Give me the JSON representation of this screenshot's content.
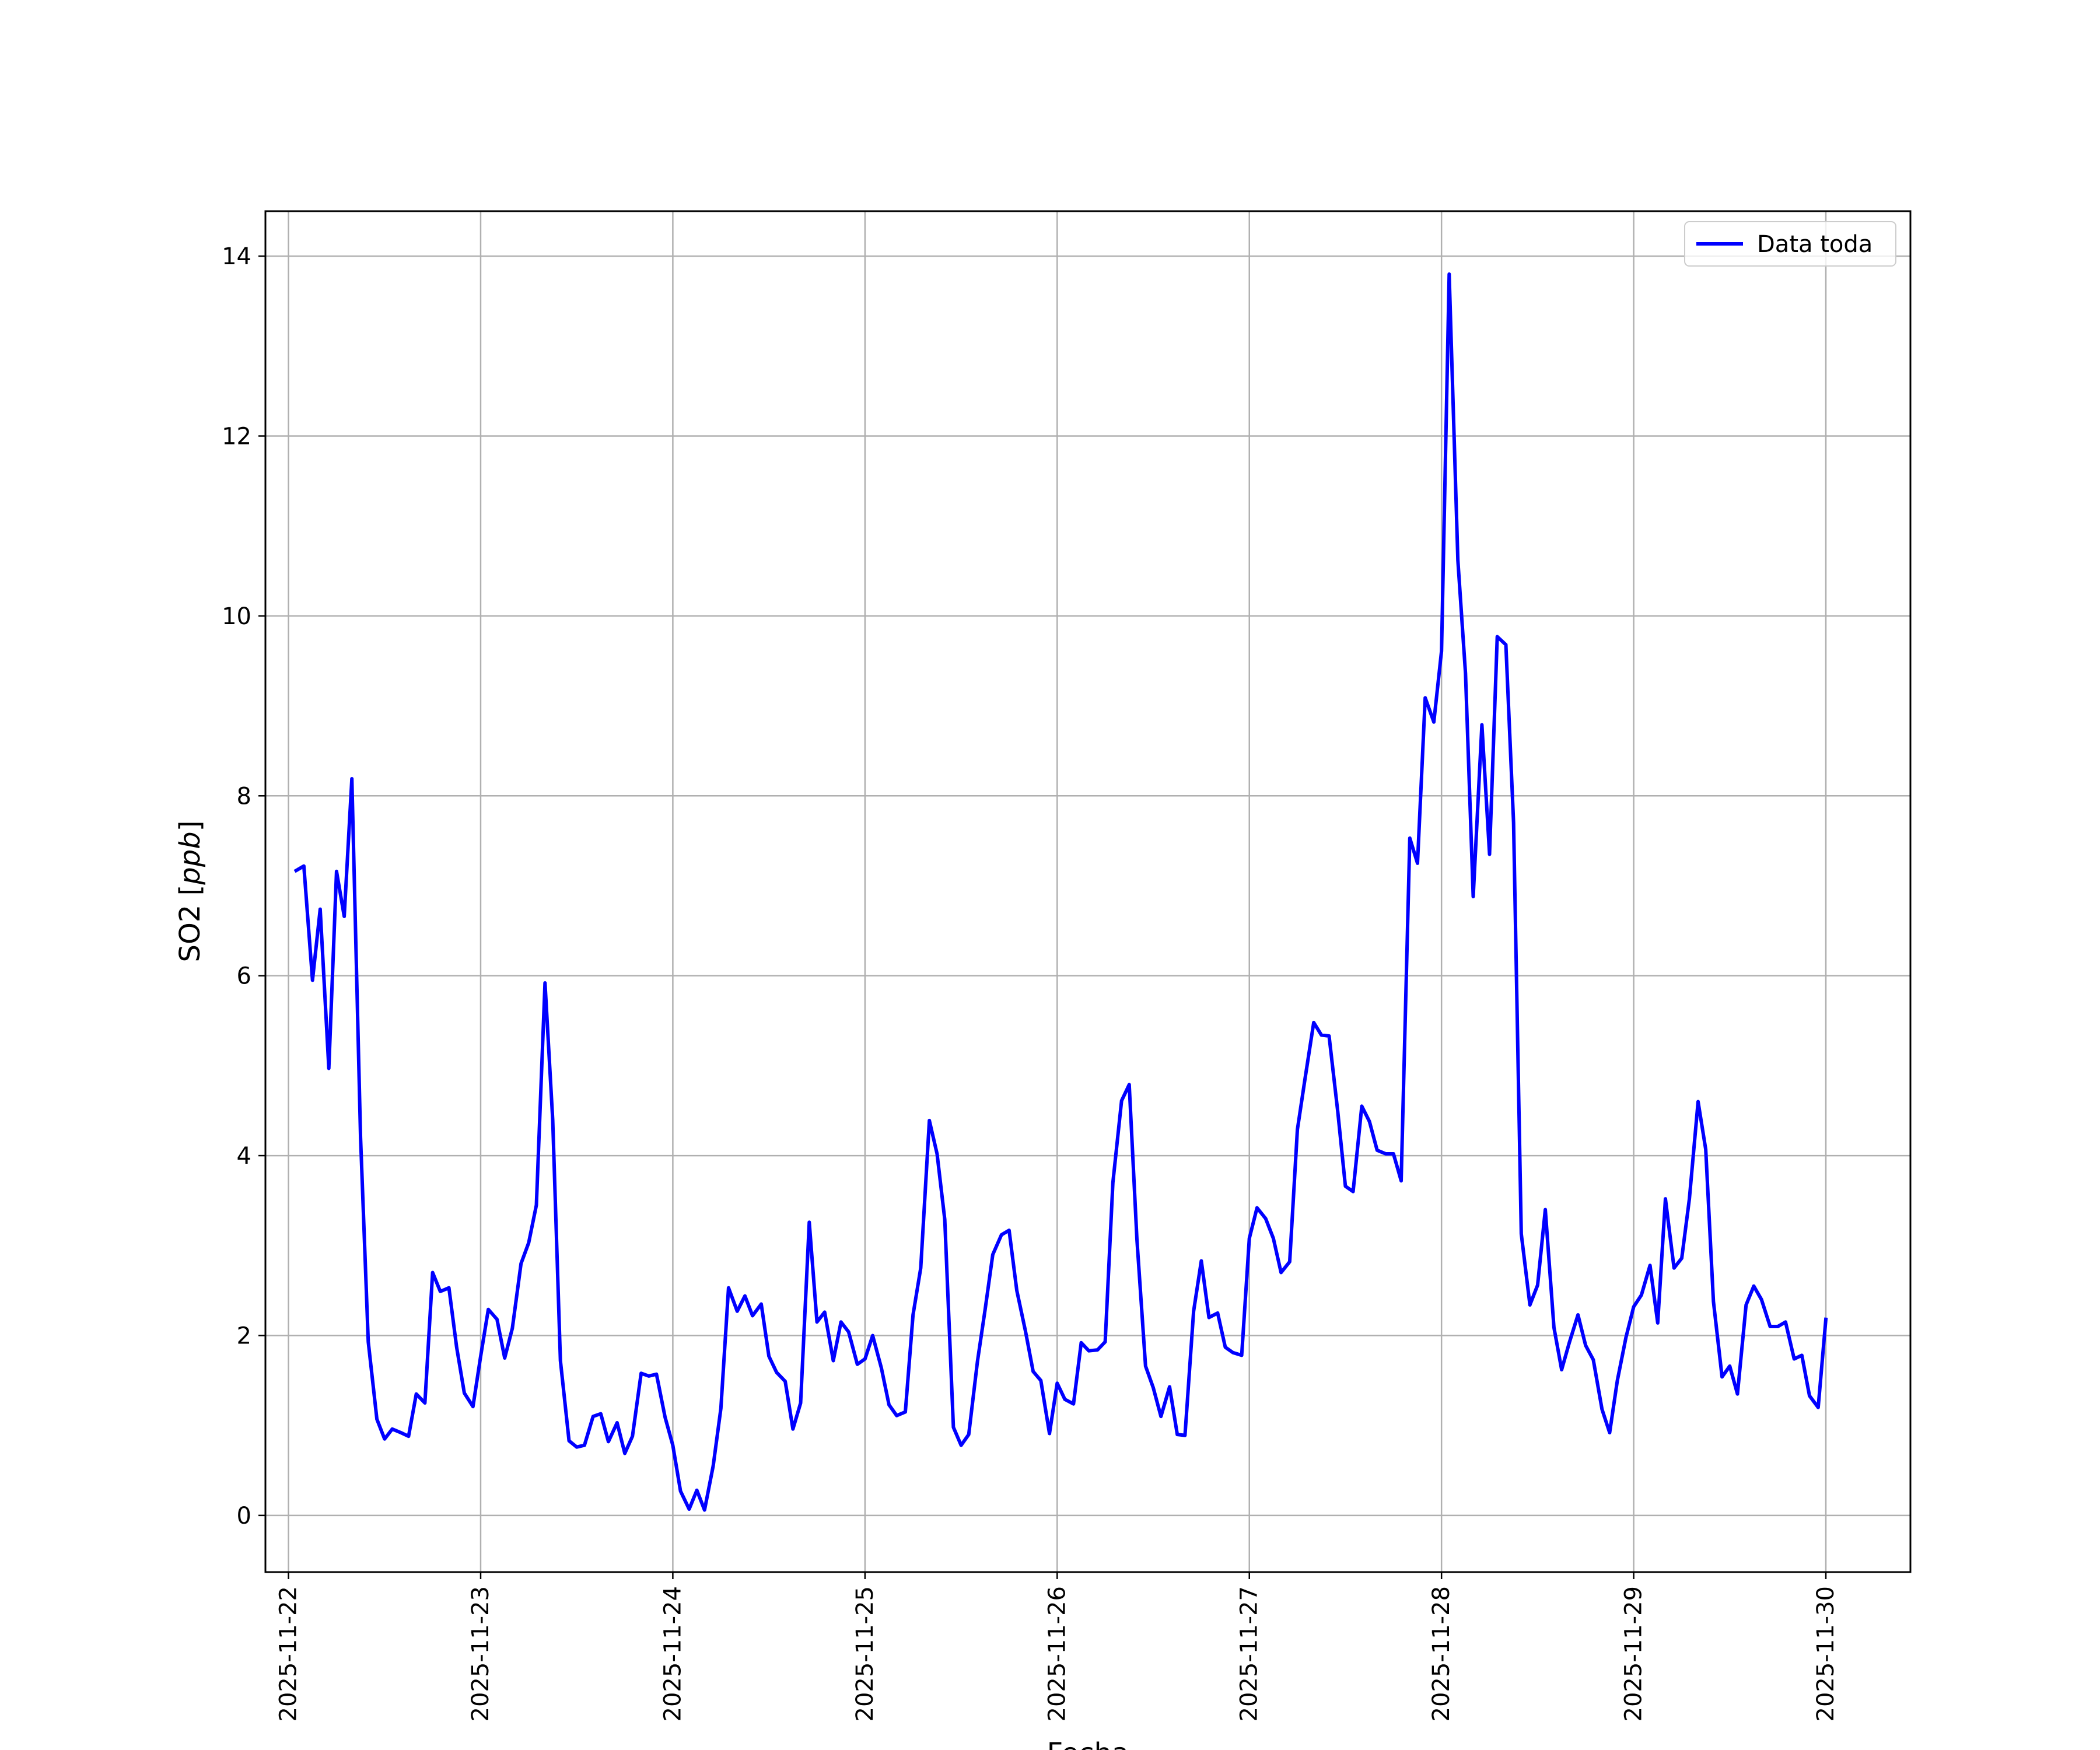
{
  "chart_data": {
    "type": "line",
    "xlabel": "Fecha",
    "ylabel_main": "SO2 [",
    "ylabel_unit": "ppb",
    "ylabel_close": "]",
    "x_tick_labels": [
      "2025-11-22",
      "2025-11-23",
      "2025-11-24",
      "2025-11-25",
      "2025-11-26",
      "2025-11-27",
      "2025-11-28",
      "2025-11-29",
      "2025-11-30"
    ],
    "y_tick_labels": [
      "0",
      "2",
      "4",
      "6",
      "8",
      "10",
      "12",
      "14"
    ],
    "xlim": [
      -0.12,
      8.44
    ],
    "ylim": [
      -0.63,
      14.5
    ],
    "grid": true,
    "legend_position": "top-right",
    "series": [
      {
        "name": "Data toda",
        "color": "#0000ff",
        "x": [
          0.04,
          0.08,
          0.125,
          0.165,
          0.21,
          0.25,
          0.29,
          0.33,
          0.375,
          0.415,
          0.46,
          0.5,
          0.54,
          0.585,
          0.625,
          0.665,
          0.71,
          0.75,
          0.79,
          0.835,
          0.875,
          0.915,
          0.96,
          1.0,
          1.04,
          1.085,
          1.125,
          1.165,
          1.21,
          1.25,
          1.29,
          1.335,
          1.375,
          1.415,
          1.46,
          1.5,
          1.54,
          1.585,
          1.625,
          1.665,
          1.71,
          1.75,
          1.79,
          1.835,
          1.875,
          1.915,
          1.96,
          2.0,
          2.04,
          2.085,
          2.125,
          2.165,
          2.21,
          2.25,
          2.29,
          2.335,
          2.375,
          2.415,
          2.46,
          2.5,
          2.54,
          2.585,
          2.625,
          2.665,
          2.71,
          2.75,
          2.79,
          2.835,
          2.875,
          2.915,
          2.96,
          3.0,
          3.04,
          3.085,
          3.125,
          3.165,
          3.21,
          3.25,
          3.29,
          3.335,
          3.375,
          3.415,
          3.46,
          3.5,
          3.54,
          3.585,
          3.625,
          3.665,
          3.71,
          3.75,
          3.79,
          3.835,
          3.875,
          3.915,
          3.96,
          4.0,
          4.04,
          4.085,
          4.125,
          4.165,
          4.21,
          4.25,
          4.29,
          4.335,
          4.375,
          4.415,
          4.46,
          4.5,
          4.54,
          4.585,
          4.625,
          4.665,
          4.71,
          4.75,
          4.79,
          4.835,
          4.875,
          4.915,
          4.96,
          5.0,
          5.04,
          5.085,
          5.125,
          5.165,
          5.21,
          5.25,
          5.29,
          5.335,
          5.375,
          5.415,
          5.46,
          5.5,
          5.54,
          5.585,
          5.625,
          5.665,
          5.71,
          5.75,
          5.79,
          5.835,
          5.875,
          5.915,
          5.96,
          6.0,
          6.04,
          6.085,
          6.125,
          6.165,
          6.21,
          6.25,
          6.29,
          6.335,
          6.375,
          6.415,
          6.46,
          6.5,
          6.54,
          6.585,
          6.625,
          6.665,
          6.71,
          6.75,
          6.79,
          6.835,
          6.875,
          6.915,
          6.96,
          7.0,
          7.04,
          7.085,
          7.125,
          7.165,
          7.21,
          7.25,
          7.29,
          7.335,
          7.375,
          7.415,
          7.46,
          7.5,
          7.54,
          7.585,
          7.625,
          7.665,
          7.71,
          7.75,
          7.79,
          7.835,
          7.875,
          7.915,
          7.96,
          8.0
        ],
        "y": [
          7.17,
          7.22,
          5.95,
          6.74,
          4.97,
          7.16,
          6.66,
          8.19,
          4.2,
          1.93,
          1.07,
          0.85,
          0.96,
          0.92,
          0.88,
          1.35,
          1.25,
          2.7,
          2.49,
          2.53,
          1.87,
          1.36,
          1.21,
          1.77,
          2.29,
          2.18,
          1.75,
          2.08,
          2.8,
          3.03,
          3.45,
          5.92,
          4.4,
          1.72,
          0.83,
          0.76,
          0.78,
          1.1,
          1.13,
          0.82,
          1.03,
          0.69,
          0.88,
          1.58,
          1.55,
          1.57,
          1.09,
          0.78,
          0.27,
          0.07,
          0.28,
          0.06,
          0.55,
          1.19,
          2.53,
          2.27,
          2.44,
          2.22,
          2.35,
          1.77,
          1.59,
          1.49,
          0.96,
          1.25,
          3.26,
          2.15,
          2.26,
          1.72,
          2.15,
          2.04,
          1.68,
          1.74,
          2.0,
          1.64,
          1.23,
          1.11,
          1.15,
          2.23,
          2.75,
          4.39,
          4.02,
          3.29,
          0.98,
          0.78,
          0.9,
          1.71,
          2.29,
          2.9,
          3.12,
          3.17,
          2.5,
          2.05,
          1.6,
          1.5,
          0.91,
          1.47,
          1.29,
          1.24,
          1.92,
          1.83,
          1.84,
          1.93,
          3.7,
          4.61,
          4.79,
          3.07,
          1.66,
          1.42,
          1.1,
          1.43,
          0.9,
          0.89,
          2.27,
          2.83,
          2.2,
          2.25,
          1.87,
          1.81,
          1.78,
          3.08,
          3.42,
          3.3,
          3.08,
          2.7,
          2.82,
          4.29,
          4.86,
          5.48,
          5.34,
          5.33,
          4.49,
          3.66,
          3.6,
          4.55,
          4.38,
          4.06,
          4.02,
          4.02,
          3.72,
          7.53,
          7.25,
          9.09,
          8.82,
          9.61,
          13.8,
          10.62,
          9.36,
          6.88,
          8.79,
          7.35,
          9.77,
          9.68,
          7.7,
          3.13,
          2.34,
          2.56,
          3.4,
          2.09,
          1.62,
          1.92,
          2.23,
          1.89,
          1.73,
          1.18,
          0.92,
          1.5,
          1.98,
          2.32,
          2.45,
          2.78,
          2.14,
          3.52,
          2.75,
          2.86,
          3.52,
          4.6,
          4.07,
          2.38,
          1.54,
          1.66,
          1.35,
          2.34,
          2.55,
          2.4,
          2.1,
          2.1,
          2.15,
          1.74,
          1.78,
          1.33,
          1.2,
          2.18
        ]
      }
    ]
  }
}
